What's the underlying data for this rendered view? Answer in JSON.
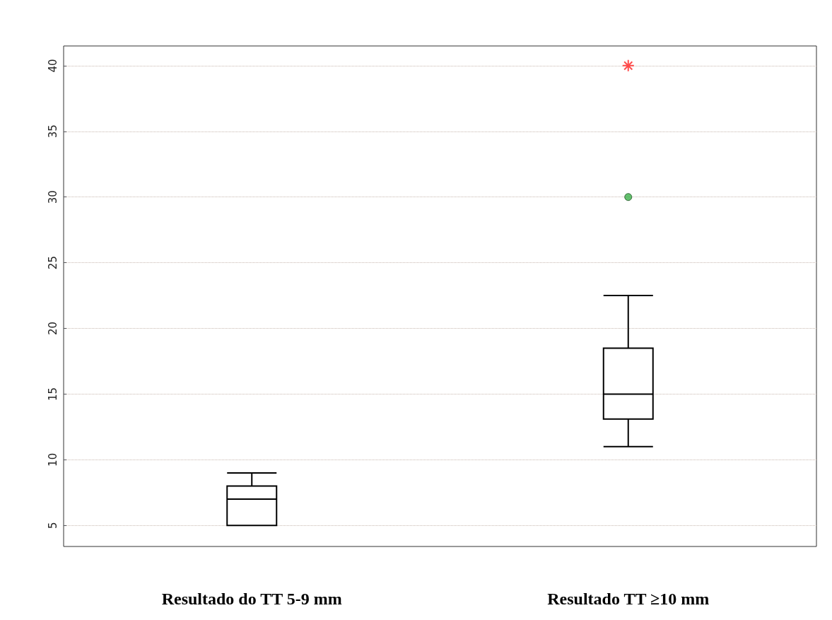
{
  "chart_data": {
    "type": "box",
    "categories": [
      "Resultado do TT 5-9 mm",
      "Resultado TT ≥10 mm"
    ],
    "ylim": [
      3.4,
      41.5
    ],
    "yticks": [
      5,
      10,
      15,
      20,
      25,
      30,
      35,
      40
    ],
    "grid": "y",
    "series": [
      {
        "color": "#000000",
        "boxes": [
          {
            "low": 5,
            "q1": 5,
            "median": 7,
            "q3": 8,
            "high": 9
          },
          {
            "low": 11,
            "q1": 13.1,
            "median": 15,
            "q3": 18.5,
            "high": 22.5
          }
        ]
      },
      {
        "type": "scatter",
        "color": "#3cb04a",
        "marker": "circle",
        "x": [
          "Resultado TT ≥10 mm"
        ],
        "values": [
          30
        ]
      },
      {
        "type": "scatter",
        "color": "#ff2020",
        "marker": "cross",
        "x": [
          "Resultado TT ≥10 mm"
        ],
        "values": [
          40
        ]
      }
    ]
  }
}
